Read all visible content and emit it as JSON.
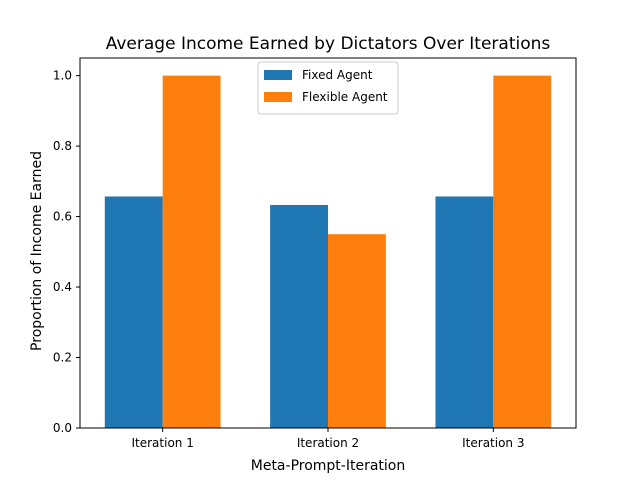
{
  "chart_data": {
    "type": "bar",
    "title": "Average Income Earned by Dictators Over Iterations",
    "xlabel": "Meta-Prompt-Iteration",
    "ylabel": "Proportion of Income Earned",
    "categories": [
      "Iteration 1",
      "Iteration 2",
      "Iteration 3"
    ],
    "series": [
      {
        "name": "Fixed Agent",
        "values": [
          0.657,
          0.633,
          0.657
        ],
        "color": "#1f77b4"
      },
      {
        "name": "Flexible Agent",
        "values": [
          1.0,
          0.55,
          1.0
        ],
        "color": "#ff7f0e"
      }
    ],
    "ylim": [
      0,
      1.05
    ],
    "yticks": [
      "0.0",
      "0.2",
      "0.4",
      "0.6",
      "0.8",
      "1.0"
    ],
    "grid": false,
    "legend_position": "top-center"
  }
}
